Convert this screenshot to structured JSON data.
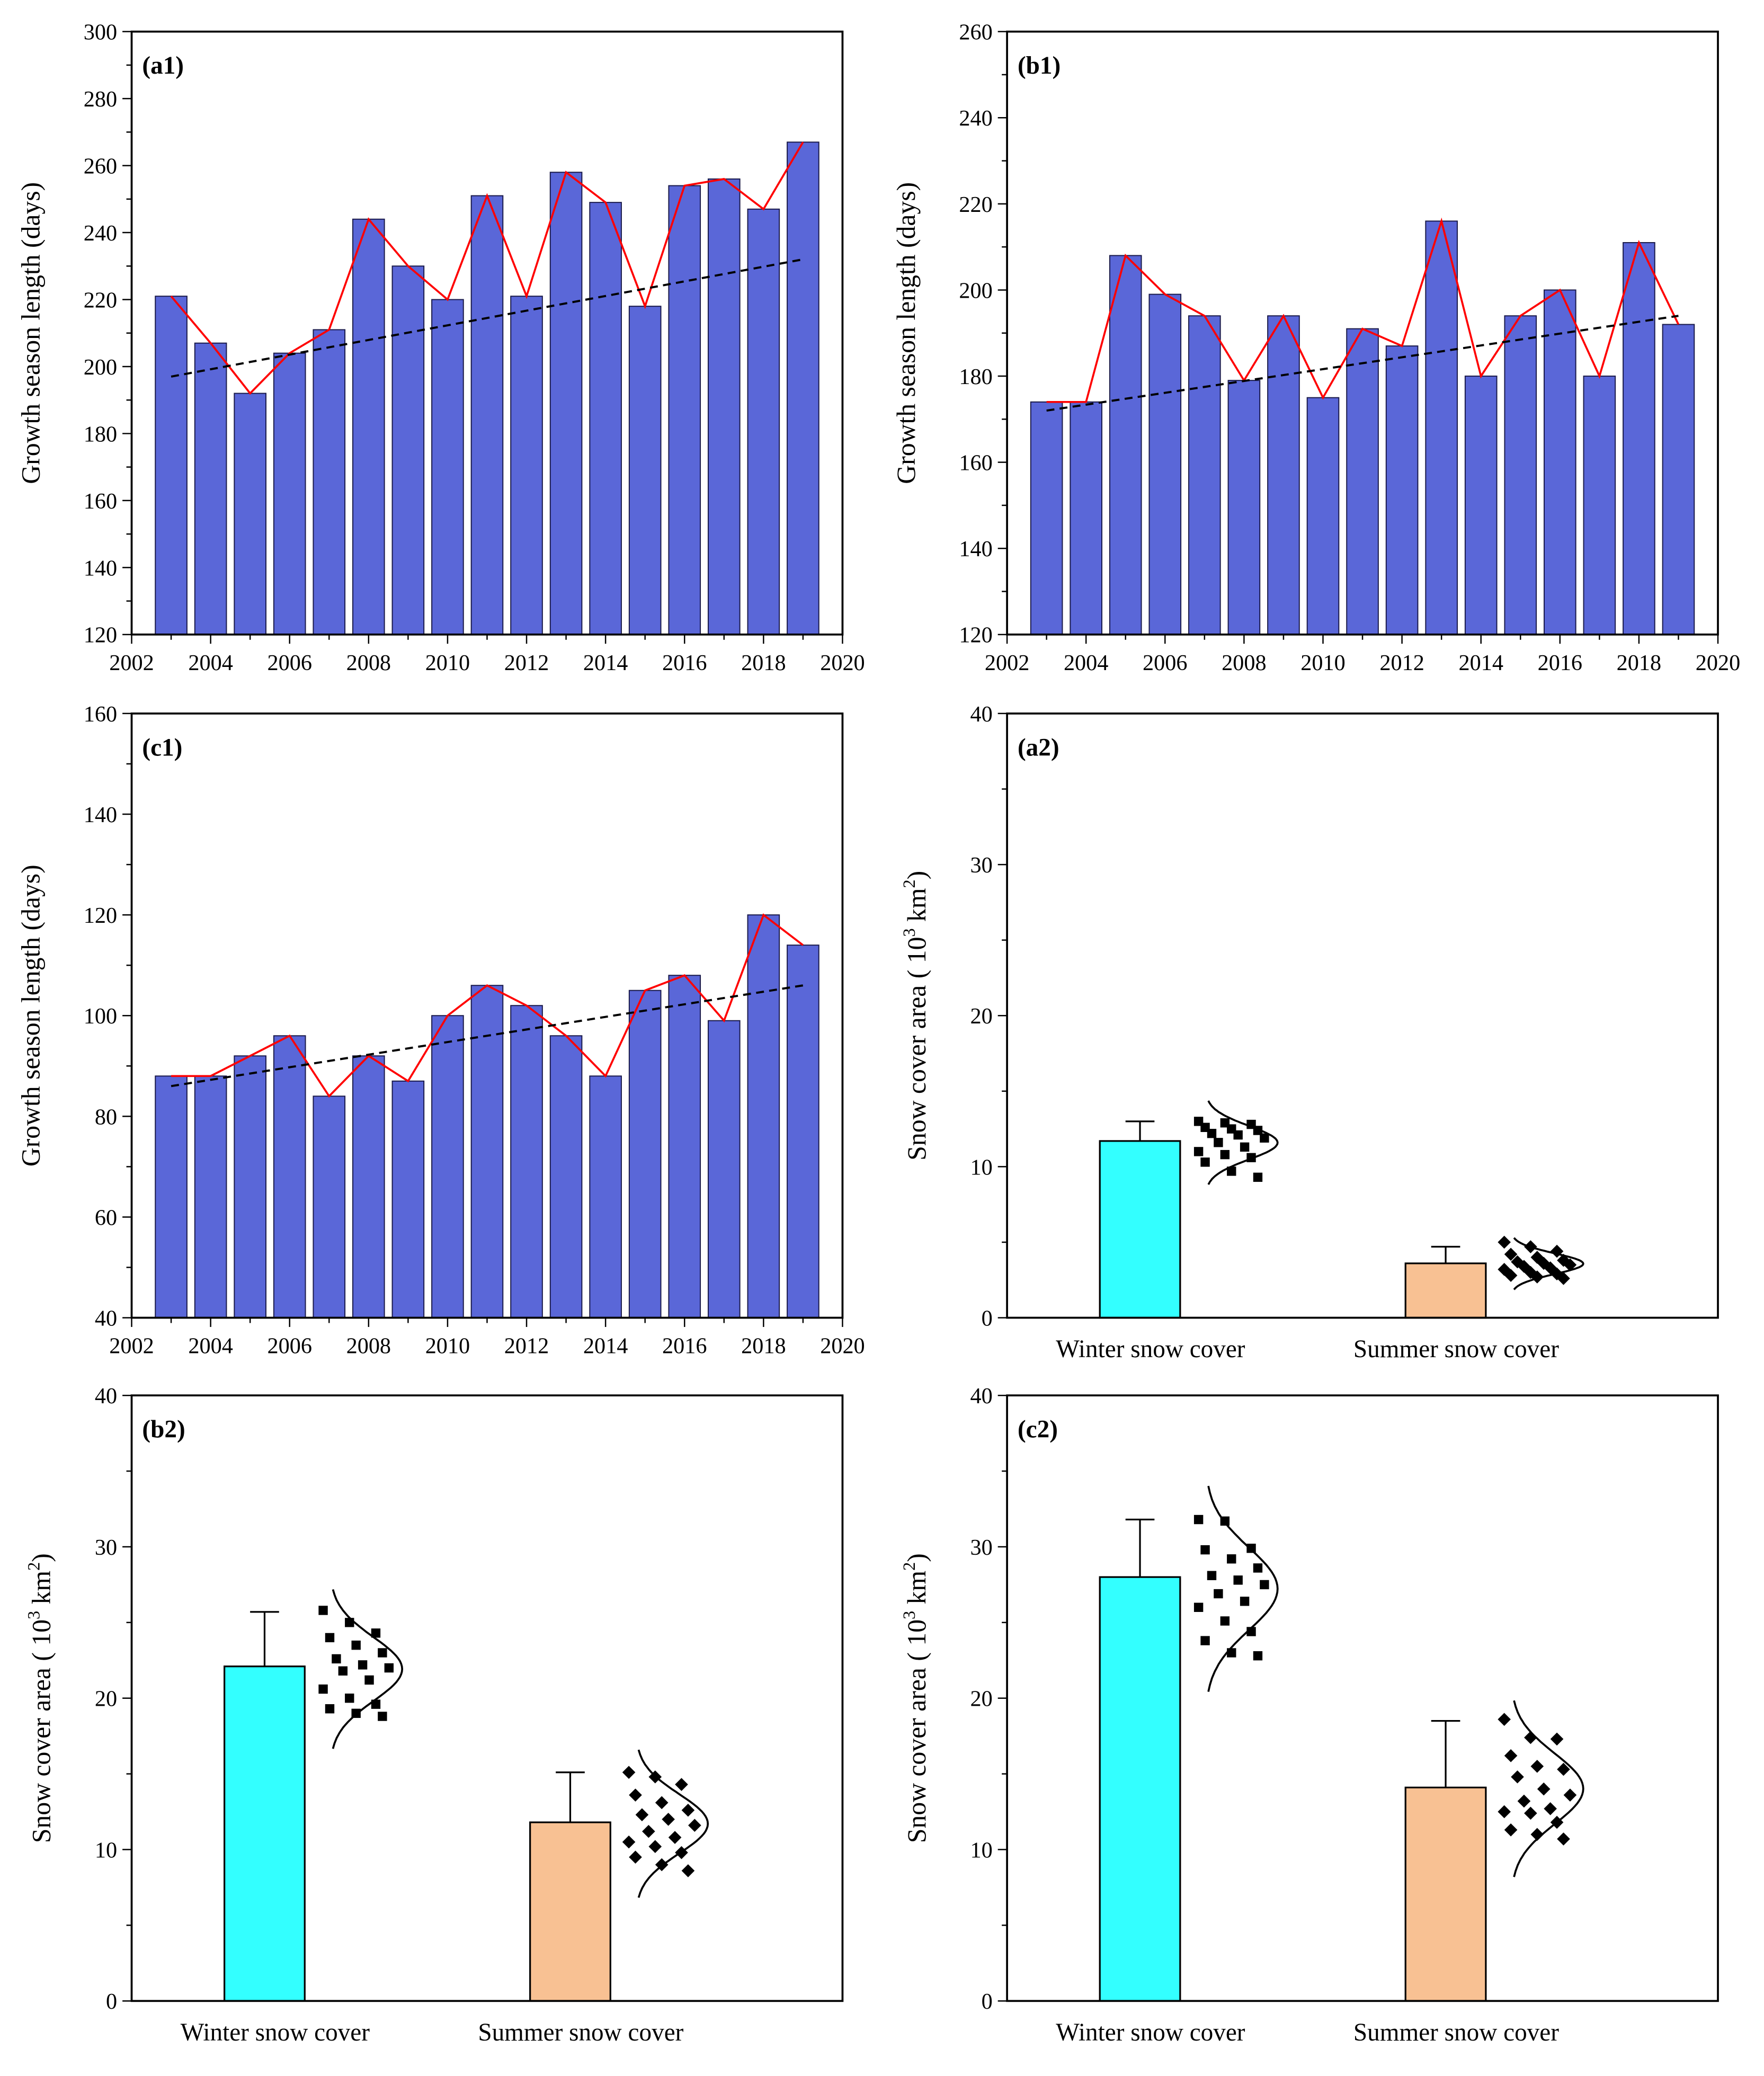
{
  "colors": {
    "bar": "#5a67d8",
    "line": "#ff0000",
    "trend": "#000000",
    "winter": "#33ffff",
    "summer": "#f8c193"
  },
  "chart_data": [
    {
      "id": "a1",
      "panel_label": "(a1)",
      "type": "bar",
      "ylabel": "Growth season length (days)",
      "xlim": [
        2002,
        2020
      ],
      "ylim": [
        120,
        300
      ],
      "ystep": 20,
      "xstep": 2,
      "x": [
        2003,
        2004,
        2005,
        2006,
        2007,
        2008,
        2009,
        2010,
        2011,
        2012,
        2013,
        2014,
        2015,
        2016,
        2017,
        2018,
        2019
      ],
      "values": [
        221,
        207,
        192,
        204,
        211,
        244,
        230,
        220,
        251,
        221,
        258,
        249,
        218,
        254,
        256,
        247,
        267
      ],
      "trend": [
        197,
        232
      ]
    },
    {
      "id": "b1",
      "panel_label": "(b1)",
      "type": "bar",
      "ylabel": "Growth season length (days)",
      "xlim": [
        2002,
        2020
      ],
      "ylim": [
        120,
        260
      ],
      "ystep": 20,
      "xstep": 2,
      "x": [
        2003,
        2004,
        2005,
        2006,
        2007,
        2008,
        2009,
        2010,
        2011,
        2012,
        2013,
        2014,
        2015,
        2016,
        2017,
        2018,
        2019
      ],
      "values": [
        174,
        174,
        208,
        199,
        194,
        179,
        194,
        175,
        191,
        187,
        216,
        180,
        194,
        200,
        180,
        211,
        192
      ],
      "trend": [
        172,
        194
      ]
    },
    {
      "id": "c1",
      "panel_label": "(c1)",
      "type": "bar",
      "ylabel": "Growth season length (days)",
      "xlim": [
        2002,
        2020
      ],
      "ylim": [
        40,
        160
      ],
      "ystep": 20,
      "xstep": 2,
      "x": [
        2003,
        2004,
        2005,
        2006,
        2007,
        2008,
        2009,
        2010,
        2011,
        2012,
        2013,
        2014,
        2015,
        2016,
        2017,
        2018,
        2019
      ],
      "values": [
        88,
        88,
        92,
        96,
        84,
        92,
        87,
        100,
        106,
        102,
        96,
        88,
        105,
        108,
        99,
        120,
        114
      ],
      "trend": [
        86,
        106
      ]
    },
    {
      "id": "a2",
      "panel_label": "(a2)",
      "type": "bar",
      "ylabel_parts": [
        "Snow cover area ( 10",
        "3",
        " km",
        "2",
        ")"
      ],
      "ylim": [
        0,
        40
      ],
      "ystep": 10,
      "categories": [
        "Winter snow cover",
        "Summer snow cover"
      ],
      "means": [
        11.7,
        3.6
      ],
      "errors": [
        1.3,
        1.1
      ],
      "points": [
        [
          13.0,
          12.9,
          12.8,
          12.6,
          12.5,
          12.4,
          12.2,
          12.1,
          11.9,
          11.6,
          11.3,
          11.0,
          10.8,
          10.6,
          10.3,
          9.7,
          9.3
        ],
        [
          5.0,
          4.7,
          4.4,
          4.2,
          4.0,
          3.8,
          3.7,
          3.6,
          3.5,
          3.4,
          3.3,
          3.2,
          3.0,
          2.9,
          2.8,
          2.7,
          2.6
        ]
      ]
    },
    {
      "id": "b2",
      "panel_label": "(b2)",
      "type": "bar",
      "ylabel_parts": [
        "Snow cover area ( 10",
        "3",
        " km",
        "2",
        ")"
      ],
      "ylim": [
        0,
        40
      ],
      "ystep": 10,
      "categories": [
        "Winter snow cover",
        "Summer snow cover"
      ],
      "means": [
        22.1,
        11.8
      ],
      "errors": [
        3.6,
        3.3
      ],
      "points": [
        [
          25.8,
          25.0,
          24.3,
          24.0,
          23.5,
          23.0,
          22.6,
          22.2,
          22.0,
          21.8,
          21.2,
          20.6,
          20.0,
          19.6,
          19.3,
          19.0,
          18.8
        ],
        [
          15.1,
          14.8,
          14.3,
          13.6,
          13.1,
          12.6,
          12.3,
          12.0,
          11.6,
          11.2,
          10.8,
          10.5,
          10.2,
          9.8,
          9.5,
          9.0,
          8.6
        ]
      ]
    },
    {
      "id": "c2",
      "panel_label": "(c2)",
      "type": "bar",
      "ylabel_parts": [
        "Snow cover area ( 10",
        "3",
        " km",
        "2",
        ")"
      ],
      "ylim": [
        0,
        40
      ],
      "ystep": 10,
      "categories": [
        "Winter snow cover",
        "Summer snow cover"
      ],
      "means": [
        28.0,
        14.1
      ],
      "errors": [
        3.8,
        4.4
      ],
      "points": [
        [
          31.8,
          31.7,
          29.9,
          29.8,
          29.2,
          28.6,
          28.1,
          27.8,
          27.5,
          26.9,
          26.4,
          26.0,
          25.1,
          24.4,
          23.8,
          23.0,
          22.8
        ],
        [
          18.6,
          17.4,
          17.3,
          16.2,
          15.5,
          15.3,
          14.8,
          14.0,
          13.6,
          13.2,
          12.7,
          12.5,
          12.4,
          11.8,
          11.3,
          11.0,
          10.7
        ]
      ]
    }
  ]
}
